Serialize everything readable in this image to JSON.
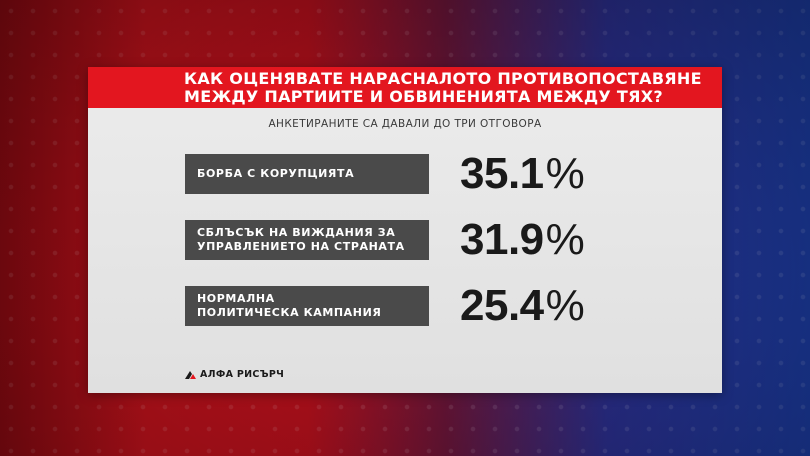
{
  "header": {
    "title_line1": "КАК ОЦЕНЯВАТЕ НАРАСНАЛОТО ПРОТИВОПОСТАВЯНЕ",
    "title_line2": "МЕЖДУ ПАРТИИТЕ И ОБВИНЕНИЯТА МЕЖДУ ТЯХ?"
  },
  "subtitle": "АНКЕТИРАНИТЕ СА ДАВАЛИ ДО ТРИ ОТГОВОРА",
  "chart_data": {
    "type": "table",
    "title": "КАК ОЦЕНЯВАТЕ НАРАСНАЛОТО ПРОТИВОПОСТАВЯНЕ МЕЖДУ ПАРТИИТЕ И ОБВИНЕНИЯТА МЕЖДУ ТЯХ?",
    "subtitle": "АНКЕТИРАНИТЕ СА ДАВАЛИ ДО ТРИ ОТГОВОРА",
    "categories": [
      "БОРБА С КОРУПЦИЯТА",
      "СБЛЪСЪК НА ВИЖДАНИЯ ЗА УПРАВЛЕНИЕТО НА СТРАНАТА",
      "НОРМАЛНА ПОЛИТИЧЕСКА КАМПАНИЯ"
    ],
    "values": [
      35.1,
      31.9,
      25.4
    ],
    "unit": "%"
  },
  "rows": [
    {
      "label": "БОРБА С КОРУПЦИЯТА",
      "value": "35.1",
      "unit": "%"
    },
    {
      "label": "СБЛЪСЪК НА ВИЖДАНИЯ ЗА\nУПРАВЛЕНИЕТО НА СТРАНАТА",
      "value": "31.9",
      "unit": "%"
    },
    {
      "label": "НОРМАЛНА\nПОЛИТИЧЕСКА КАМПАНИЯ",
      "value": "25.4",
      "unit": "%"
    }
  ],
  "source": {
    "name": "АЛФА РИСЪРЧ",
    "icon": "alpha-research-logo-icon"
  },
  "colors": {
    "header_red": "#e3161f",
    "label_box": "#4a4a4a",
    "card_bg": "#e6e6e6",
    "value_text": "#1a1a1a"
  }
}
